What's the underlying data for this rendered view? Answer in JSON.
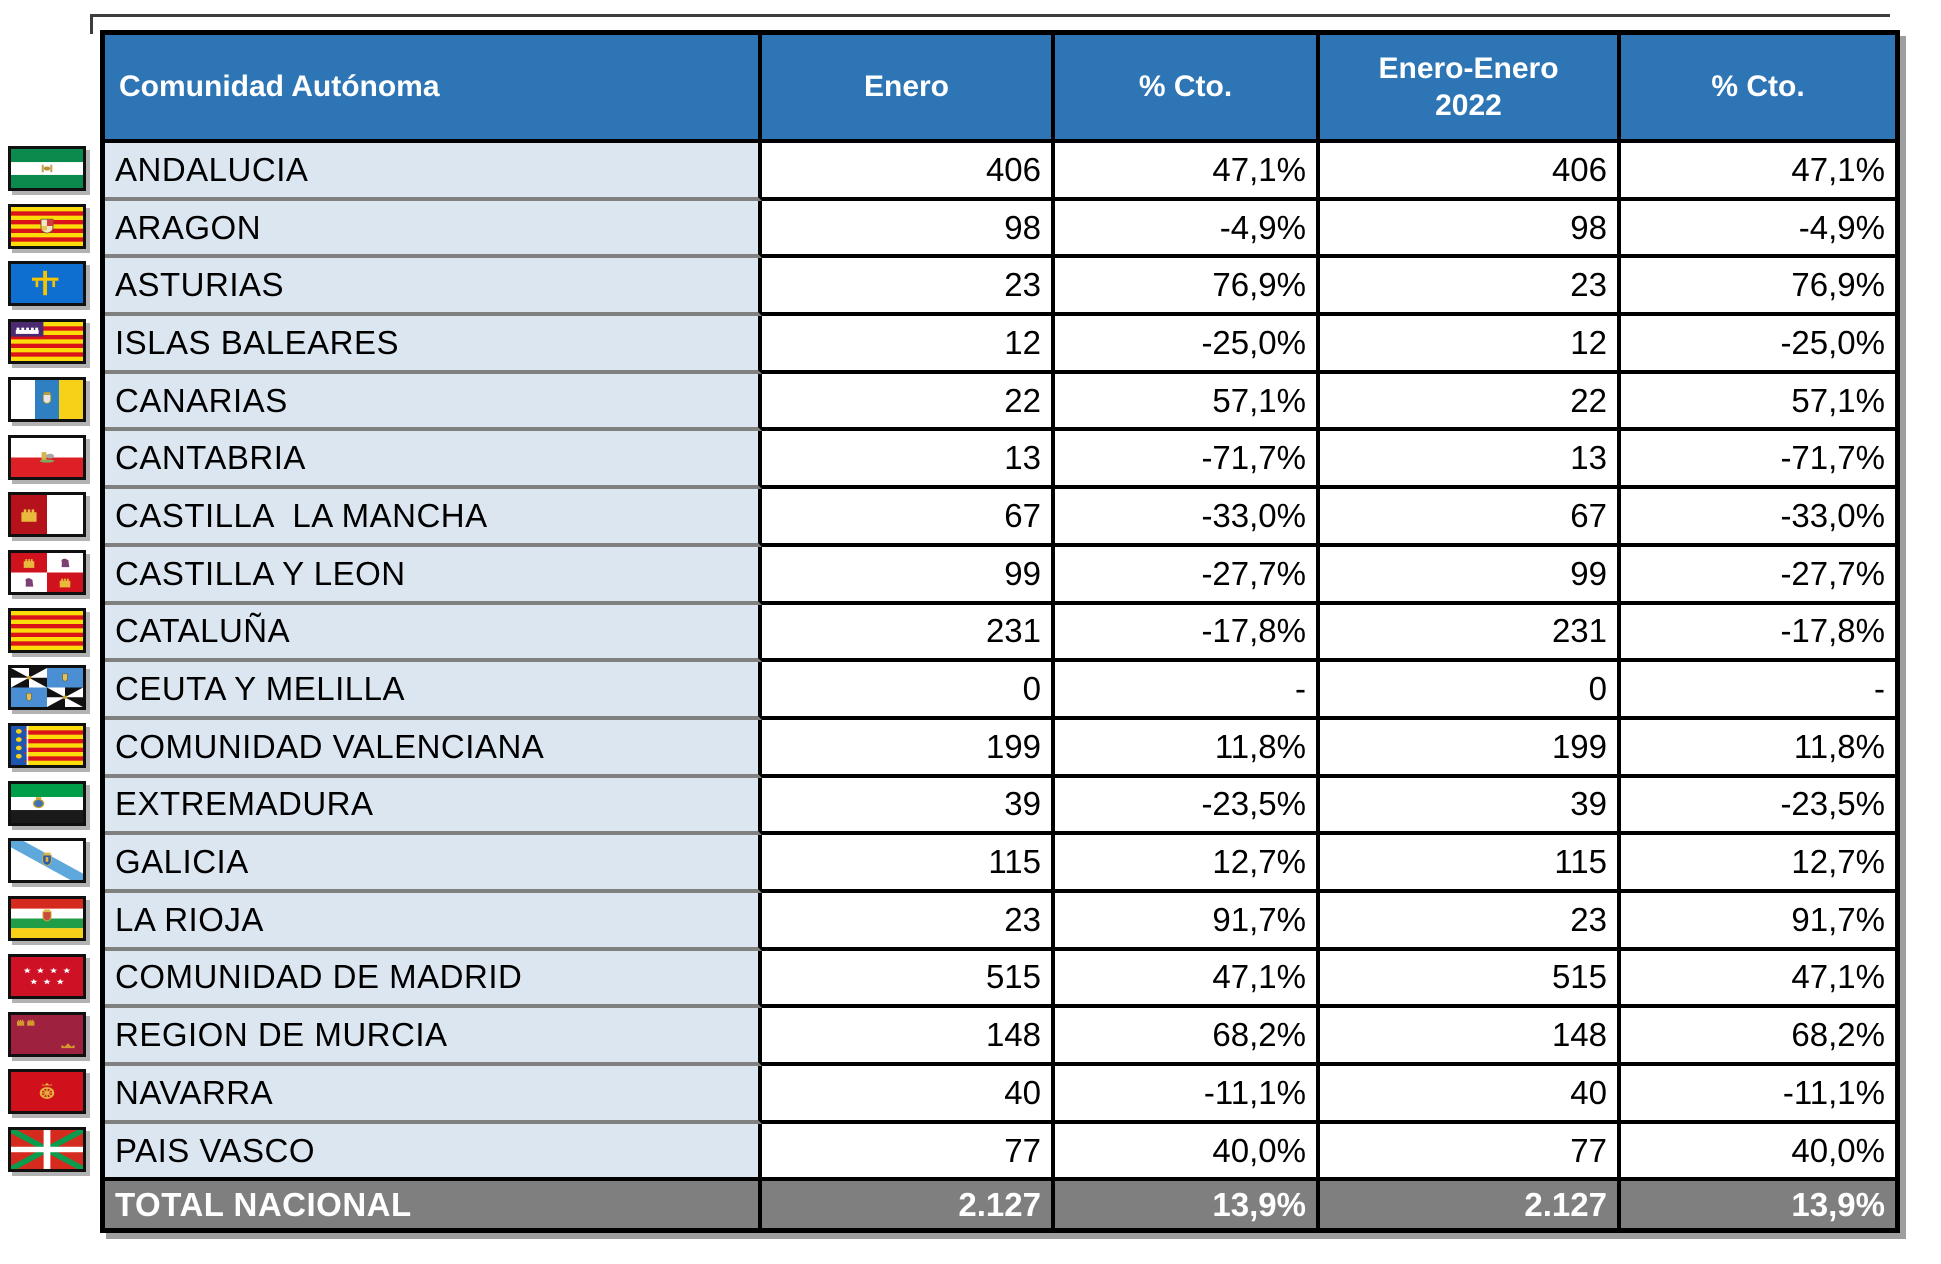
{
  "chart_data": {
    "type": "table",
    "columns": [
      "Comunidad Autónoma",
      "Enero",
      "% Cto.",
      "Enero-Enero\n2022",
      "% Cto."
    ],
    "rows": [
      {
        "region": "ANDALUCIA",
        "flag_icon": "flag-andalucia",
        "values": [
          "406",
          "47,1%",
          "406",
          "47,1%"
        ]
      },
      {
        "region": "ARAGON",
        "flag_icon": "flag-aragon",
        "values": [
          "98",
          "-4,9%",
          "98",
          "-4,9%"
        ]
      },
      {
        "region": "ASTURIAS",
        "flag_icon": "flag-asturias",
        "values": [
          "23",
          "76,9%",
          "23",
          "76,9%"
        ]
      },
      {
        "region": "ISLAS BALEARES",
        "flag_icon": "flag-islas-baleares",
        "values": [
          "12",
          "-25,0%",
          "12",
          "-25,0%"
        ]
      },
      {
        "region": "CANARIAS",
        "flag_icon": "flag-canarias",
        "values": [
          "22",
          "57,1%",
          "22",
          "57,1%"
        ]
      },
      {
        "region": "CANTABRIA",
        "flag_icon": "flag-cantabria",
        "values": [
          "13",
          "-71,7%",
          "13",
          "-71,7%"
        ]
      },
      {
        "region": "CASTILLA  LA MANCHA",
        "flag_icon": "flag-castilla-la-mancha",
        "values": [
          "67",
          "-33,0%",
          "67",
          "-33,0%"
        ]
      },
      {
        "region": "CASTILLA Y LEON",
        "flag_icon": "flag-castilla-y-leon",
        "values": [
          "99",
          "-27,7%",
          "99",
          "-27,7%"
        ]
      },
      {
        "region": "CATALUÑA",
        "flag_icon": "flag-cataluna",
        "values": [
          "231",
          "-17,8%",
          "231",
          "-17,8%"
        ]
      },
      {
        "region": "CEUTA Y MELILLA",
        "flag_icon": "flag-ceuta-y-melilla",
        "values": [
          "0",
          "-",
          "0",
          "-"
        ]
      },
      {
        "region": "COMUNIDAD VALENCIANA",
        "flag_icon": "flag-comunidad-valenciana",
        "values": [
          "199",
          "11,8%",
          "199",
          "11,8%"
        ]
      },
      {
        "region": "EXTREMADURA",
        "flag_icon": "flag-extremadura",
        "values": [
          "39",
          "-23,5%",
          "39",
          "-23,5%"
        ]
      },
      {
        "region": "GALICIA",
        "flag_icon": "flag-galicia",
        "values": [
          "115",
          "12,7%",
          "115",
          "12,7%"
        ]
      },
      {
        "region": "LA RIOJA",
        "flag_icon": "flag-la-rioja",
        "values": [
          "23",
          "91,7%",
          "23",
          "91,7%"
        ]
      },
      {
        "region": "COMUNIDAD DE MADRID",
        "flag_icon": "flag-comunidad-de-madrid",
        "values": [
          "515",
          "47,1%",
          "515",
          "47,1%"
        ]
      },
      {
        "region": "REGION DE MURCIA",
        "flag_icon": "flag-region-de-murcia",
        "values": [
          "148",
          "68,2%",
          "148",
          "68,2%"
        ]
      },
      {
        "region": "NAVARRA",
        "flag_icon": "flag-navarra",
        "values": [
          "40",
          "-11,1%",
          "40",
          "-11,1%"
        ]
      },
      {
        "region": "PAIS VASCO",
        "flag_icon": "flag-pais-vasco",
        "values": [
          "77",
          "40,0%",
          "77",
          "40,0%"
        ]
      }
    ],
    "total": {
      "label": "TOTAL NACIONAL",
      "values": [
        "2.127",
        "13,9%",
        "2.127",
        "13,9%"
      ]
    }
  },
  "colors": {
    "header-bg": "#2E75B6",
    "header-text": "#FFFFFF",
    "label-bg": "#DCE6F1",
    "label-sep": "#808080",
    "grid": "#000000",
    "total-bg": "#7F7F7F",
    "total-text": "#FFFFFF",
    "shadow": "#9E9E9E"
  }
}
